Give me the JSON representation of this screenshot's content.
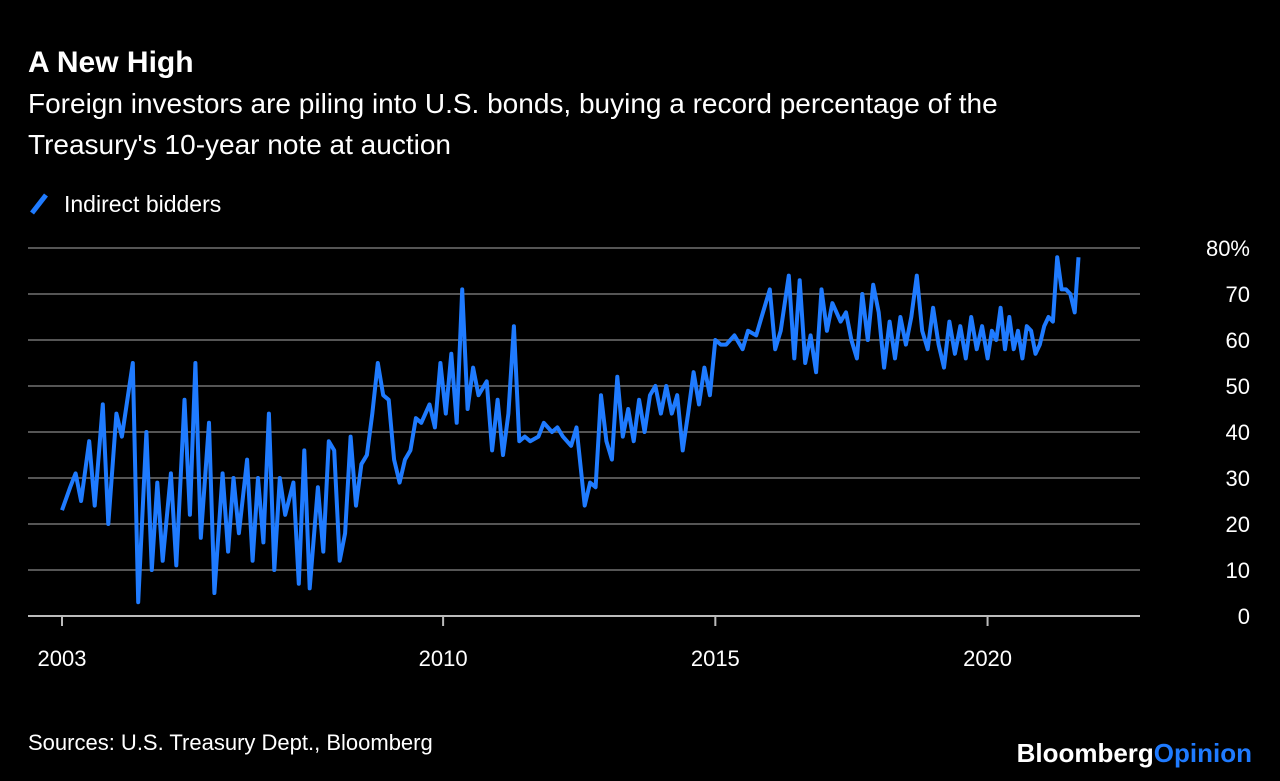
{
  "chart_data": {
    "type": "line",
    "title": "A New High",
    "subtitle": [
      "Foreign investors are piling into U.S. bonds, buying a record percentage of the",
      "Treasury's 10-year note at auction"
    ],
    "source": "Sources: U.S. Treasury Dept., Bloomberg",
    "brand": [
      "Bloomberg",
      "Opinion"
    ],
    "legend": "top-left",
    "grid": true,
    "xlim": [
      2003,
      2022.8
    ],
    "xticks": [
      2003,
      2010,
      2015,
      2020
    ],
    "ylim": [
      0,
      80
    ],
    "yticks": [
      0,
      10,
      20,
      30,
      40,
      50,
      60,
      70,
      {
        "value": 80,
        "label": "80%"
      }
    ],
    "series": [
      {
        "name": "Indirect bidders",
        "color": "#1f7bff",
        "x": [
          2003.0,
          2003.15,
          2003.25,
          2003.35,
          2003.5,
          2003.6,
          2003.75,
          2003.85,
          2004.0,
          2004.1,
          2004.3,
          2004.4,
          2004.55,
          2004.65,
          2004.75,
          2004.85,
          2005.0,
          2005.1,
          2005.25,
          2005.35,
          2005.45,
          2005.55,
          2005.7,
          2005.8,
          2005.95,
          2006.05,
          2006.15,
          2006.25,
          2006.4,
          2006.5,
          2006.6,
          2006.7,
          2006.8,
          2006.9,
          2007.0,
          2007.1,
          2007.25,
          2007.35,
          2007.45,
          2007.55,
          2007.7,
          2007.8,
          2007.9,
          2008.0,
          2008.1,
          2008.2,
          2008.3,
          2008.4,
          2008.5,
          2008.6,
          2008.7,
          2008.8,
          2008.9,
          2009.0,
          2009.1,
          2009.2,
          2009.3,
          2009.4,
          2009.5,
          2009.6,
          2009.75,
          2009.85,
          2009.95,
          2010.05,
          2010.15,
          2010.25,
          2010.35,
          2010.45,
          2010.55,
          2010.65,
          2010.8,
          2010.9,
          2011.0,
          2011.1,
          2011.2,
          2011.3,
          2011.4,
          2011.5,
          2011.6,
          2011.75,
          2011.85,
          2012.0,
          2012.1,
          2012.2,
          2012.35,
          2012.45,
          2012.6,
          2012.7,
          2012.8,
          2012.9,
          2013.0,
          2013.1,
          2013.2,
          2013.3,
          2013.4,
          2013.5,
          2013.6,
          2013.7,
          2013.8,
          2013.9,
          2014.0,
          2014.1,
          2014.2,
          2014.3,
          2014.4,
          2014.5,
          2014.6,
          2014.7,
          2014.8,
          2014.9,
          2015.0,
          2015.1,
          2015.2,
          2015.35,
          2015.5,
          2015.6,
          2015.75,
          2015.85,
          2016.0,
          2016.1,
          2016.2,
          2016.35,
          2016.45,
          2016.55,
          2016.65,
          2016.75,
          2016.85,
          2016.95,
          2017.05,
          2017.15,
          2017.3,
          2017.4,
          2017.5,
          2017.6,
          2017.7,
          2017.8,
          2017.9,
          2018.0,
          2018.1,
          2018.2,
          2018.3,
          2018.4,
          2018.5,
          2018.6,
          2018.7,
          2018.8,
          2018.9,
          2019.0,
          2019.1,
          2019.2,
          2019.3,
          2019.4,
          2019.5,
          2019.6,
          2019.7,
          2019.8,
          2019.9,
          2020.0,
          2020.08,
          2020.16,
          2020.24,
          2020.32,
          2020.4,
          2020.48,
          2020.56,
          2020.64,
          2020.72,
          2020.8,
          2020.88,
          2020.96,
          2021.04,
          2021.12,
          2021.2,
          2021.28,
          2021.36,
          2021.44,
          2021.52,
          2021.6,
          2021.67
        ],
        "values": [
          23,
          28,
          31,
          25,
          38,
          24,
          46,
          20,
          44,
          39,
          55,
          3,
          40,
          10,
          29,
          12,
          31,
          11,
          47,
          22,
          55,
          17,
          42,
          5,
          31,
          14,
          30,
          18,
          34,
          12,
          30,
          16,
          44,
          10,
          30,
          22,
          29,
          7,
          36,
          6,
          28,
          14,
          38,
          36,
          12,
          18,
          39,
          24,
          33,
          35,
          44,
          55,
          48,
          47,
          34,
          29,
          34,
          36,
          43,
          42,
          46,
          41,
          55,
          44,
          57,
          42,
          71,
          45,
          54,
          48,
          51,
          36,
          47,
          35,
          44,
          63,
          38,
          39,
          38,
          39,
          42,
          40,
          41,
          39,
          37,
          41,
          24,
          29,
          28,
          48,
          38,
          34,
          52,
          39,
          45,
          38,
          47,
          40,
          48,
          50,
          44,
          50,
          44,
          48,
          36,
          44,
          53,
          46,
          54,
          48,
          60,
          59,
          59,
          61,
          58,
          62,
          61,
          65,
          71,
          58,
          62,
          74,
          56,
          73,
          55,
          61,
          53,
          71,
          62,
          68,
          64,
          66,
          60,
          56,
          70,
          60,
          72,
          66,
          54,
          64,
          56,
          65,
          59,
          65,
          74,
          62,
          58,
          67,
          59,
          54,
          64,
          57,
          63,
          56,
          65,
          58,
          63,
          56,
          62,
          60,
          67,
          58,
          65,
          58,
          62,
          56,
          63,
          62,
          57,
          59,
          63,
          65,
          64,
          78,
          71,
          71,
          70,
          66,
          78
        ]
      }
    ]
  }
}
